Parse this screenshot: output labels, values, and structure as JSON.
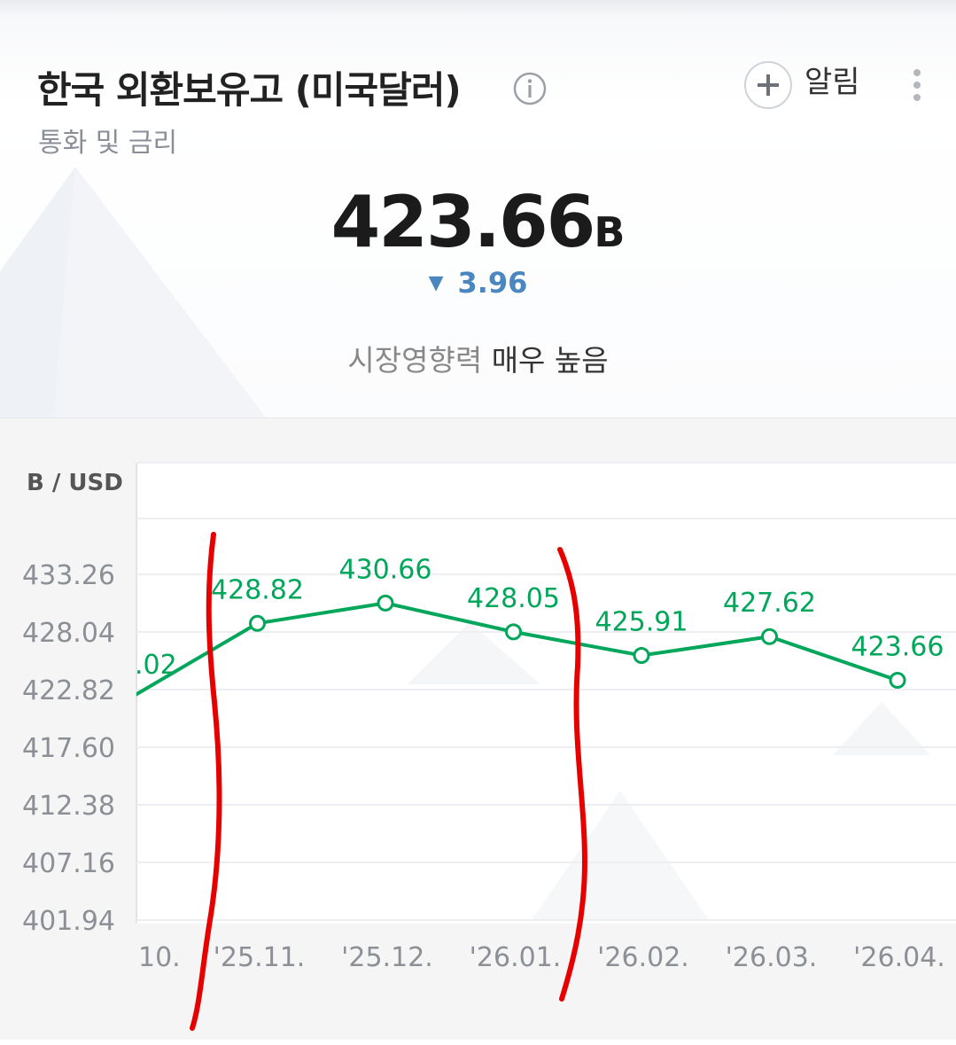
{
  "header": {
    "title": "한국 외환보유고 (미국달러)",
    "subtitle": "통화 및 금리",
    "alert_label": "알림",
    "icons": {
      "info": "info-icon",
      "add": "plus-icon",
      "more": "more-vertical-icon"
    }
  },
  "summary": {
    "value": "423.66",
    "unit": "B",
    "change_symbol": "▼",
    "change": "3.96",
    "impact_label": "시장영향력",
    "impact_level": "매우 높음"
  },
  "colors": {
    "accent_line": "#00a65a",
    "down": "#4a86c0",
    "annotation": "#e60000"
  },
  "chart_data": {
    "type": "line",
    "ylabel": "B / USD",
    "y_ticks": [
      433.26,
      428.04,
      422.82,
      417.6,
      412.38,
      407.16,
      401.94
    ],
    "y_tick_labels": [
      "433.26",
      "428.04",
      "422.82",
      "417.60",
      "412.38",
      "407.16",
      "401.94"
    ],
    "categories": [
      "10.",
      "'25.11.",
      "'25.12.",
      "'26.01.",
      "'26.02.",
      "'26.03.",
      "'26.04."
    ],
    "series": [
      {
        "values": [
          422.02,
          428.82,
          430.66,
          428.05,
          425.91,
          427.62,
          423.66
        ],
        "labels": [
          ".02",
          "428.82",
          "430.66",
          "428.05",
          "425.91",
          "427.62",
          "423.66"
        ]
      }
    ],
    "grid": true,
    "annotations": "two hand-drawn red vertical strokes (around '25.11. and '26.01./'26.02.)"
  }
}
